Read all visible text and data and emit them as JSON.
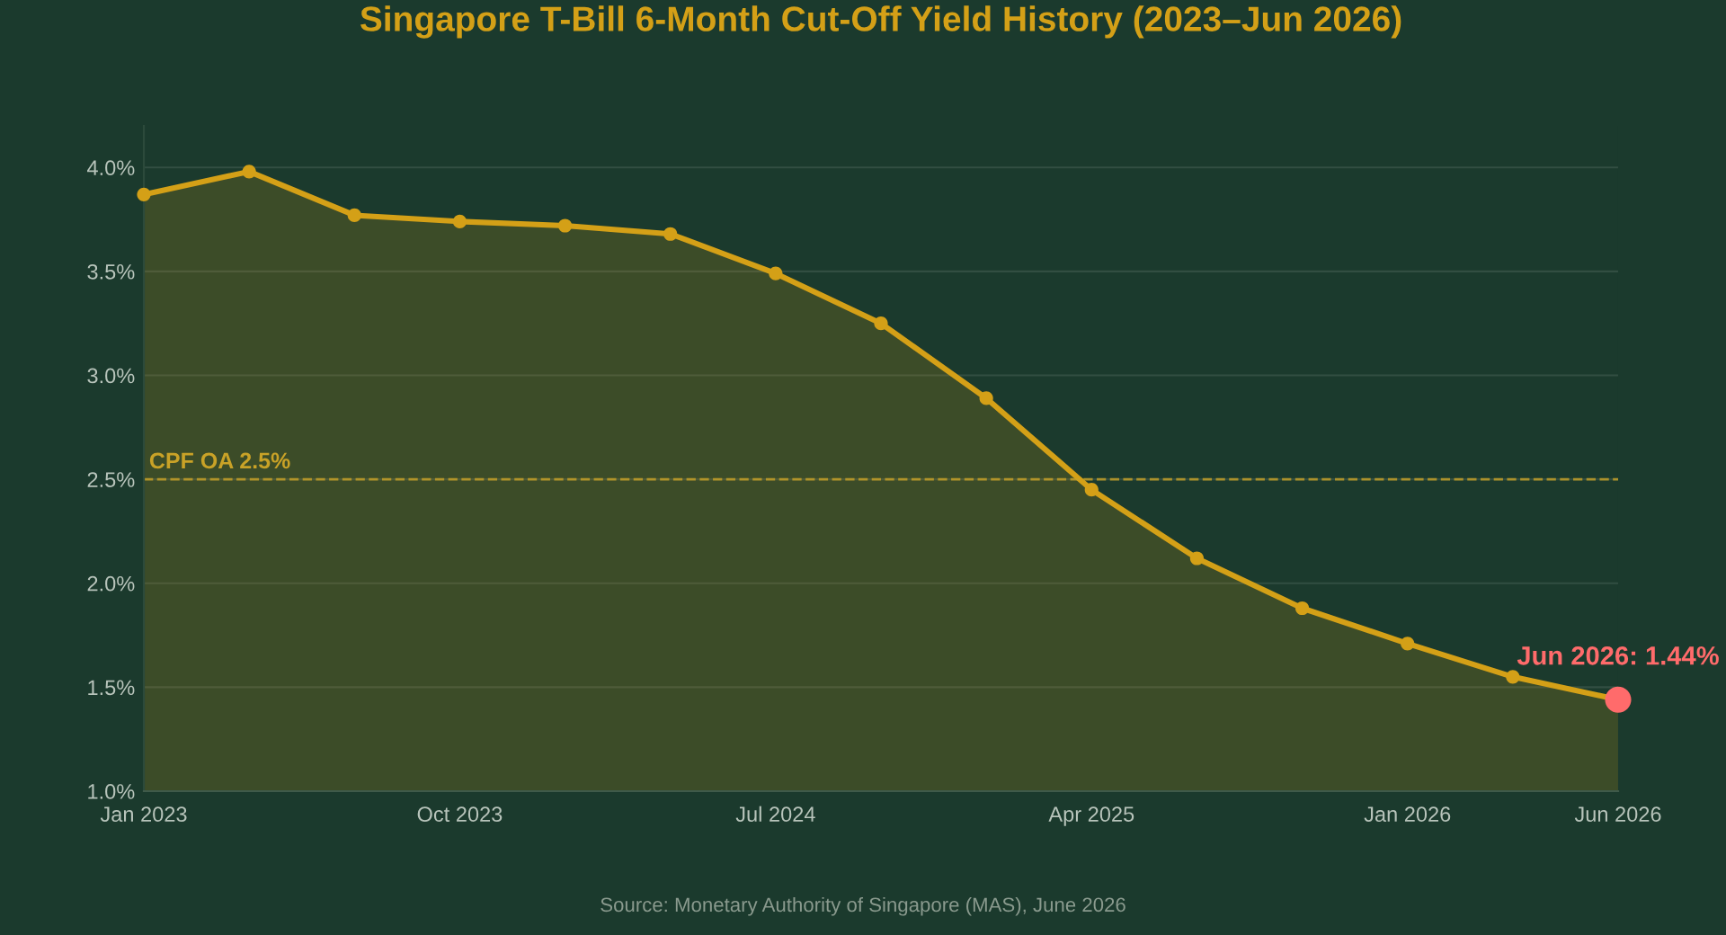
{
  "chart_data": {
    "type": "area",
    "title": "Singapore T-Bill 6-Month Cut-Off Yield History (2023–Jun 2026)",
    "categories": [
      "Jan 2023",
      null,
      null,
      "Oct 2023",
      null,
      null,
      "Jul 2024",
      null,
      null,
      "Apr 2025",
      null,
      null,
      "Jan 2026",
      null,
      "Jun 2026"
    ],
    "series": [
      {
        "color": "#d4a017",
        "values": [
          3.87,
          3.98,
          3.77,
          3.74,
          3.72,
          3.68,
          3.49,
          3.25,
          2.89,
          2.45,
          2.12,
          1.88,
          1.71,
          1.55,
          1.44
        ],
        "colors": [
          "#d4a017",
          "#d4a017",
          "#d4a017",
          "#d4a017",
          "#d4a017",
          "#d4a017",
          "#d4a017",
          "#d4a017",
          "#d4a017",
          "#d4a017",
          "#d4a017",
          "#d4a017",
          "#d4a017",
          "#d4a017",
          "#ff6b6b"
        ]
      }
    ],
    "ylim": [
      1.0,
      4.2
    ],
    "yticks": [
      {
        "value": 1.0,
        "label": "1.0%"
      },
      {
        "value": 1.5,
        "label": "1.5%"
      },
      {
        "value": 2.0,
        "label": "2.0%"
      },
      {
        "value": 2.5,
        "label": "2.5%"
      },
      {
        "value": 3.0,
        "label": "3.0%"
      },
      {
        "value": 3.5,
        "label": "3.5%"
      },
      {
        "value": 4.0,
        "label": "4.0%"
      }
    ],
    "ref_lines": [
      {
        "axis": "y",
        "value": 2.5,
        "label": "CPF OA 2.5%",
        "color": "#c9a227",
        "line_style": "dashed"
      }
    ],
    "annotations": [
      {
        "text": "Jun 2026: 1.44%",
        "x": "Jun 2026",
        "y": 1.44
      },
      "Source: Monetary Authority of Singapore (MAS), June 2026"
    ],
    "grid": "y",
    "marker": "circle",
    "line_style": "solid"
  }
}
